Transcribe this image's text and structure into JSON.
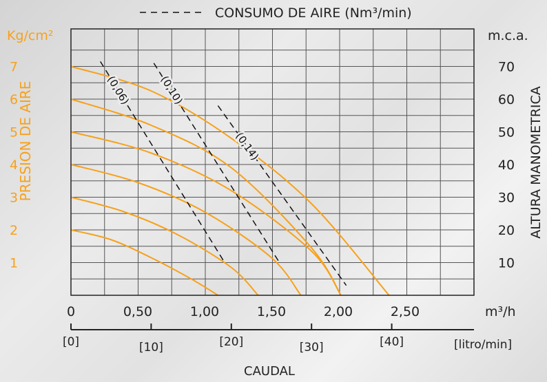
{
  "chart_data": {
    "type": "line",
    "title": "CONSUMO DE AIRE (Nm³/min)",
    "xlabel": "CAUDAL",
    "x_unit": "m³/h",
    "x_ticks": [
      "0",
      "0,50",
      "1,00",
      "1,50",
      "2,00",
      "2,50"
    ],
    "x_range": [
      0,
      3.0
    ],
    "x2_ticks": [
      "[0]",
      "[10]",
      "[20]",
      "[30]",
      "[40]"
    ],
    "x2_unit": "[litro/min]",
    "ylabel_left": "PRESION DE AIRE",
    "y_left_unit": "Kg/cm²",
    "y_left_ticks": [
      "1",
      "2",
      "3",
      "4",
      "5",
      "6",
      "7"
    ],
    "y_left_range": [
      0,
      7.5
    ],
    "ylabel_right": "ALTURA MANOMETRICA",
    "y_right_unit": "m.c.a.",
    "y_right_ticks": [
      "10",
      "20",
      "30",
      "40",
      "50",
      "60",
      "70"
    ],
    "y_right_range": [
      0,
      75
    ],
    "grid": true,
    "series": [
      {
        "name": "2",
        "x": [
          0,
          0.3,
          0.6,
          0.9,
          1.1
        ],
        "y": [
          2.0,
          1.7,
          1.15,
          0.5,
          0
        ]
      },
      {
        "name": "3",
        "x": [
          0,
          0.4,
          0.8,
          1.2,
          1.4
        ],
        "y": [
          3.0,
          2.55,
          1.85,
          0.85,
          0
        ]
      },
      {
        "name": "4",
        "x": [
          0,
          0.5,
          1.0,
          1.5,
          1.72
        ],
        "y": [
          4.0,
          3.45,
          2.55,
          1.15,
          0
        ]
      },
      {
        "name": "5",
        "x": [
          0,
          0.6,
          1.2,
          1.8,
          2.02
        ],
        "y": [
          5.0,
          4.35,
          3.2,
          1.35,
          0
        ]
      },
      {
        "name": "6",
        "x": [
          0,
          0.6,
          1.2,
          1.8,
          2.02
        ],
        "y": [
          6.0,
          5.2,
          3.9,
          1.45,
          0
        ]
      },
      {
        "name": "7",
        "x": [
          0,
          0.6,
          1.2,
          1.8,
          2.38
        ],
        "y": [
          7.0,
          6.25,
          4.8,
          2.8,
          0
        ]
      }
    ],
    "air_consumption": [
      {
        "name": "(0,06)",
        "x": [
          0.22,
          1.15
        ],
        "y": [
          7.15,
          1.0
        ]
      },
      {
        "name": "(0,10)",
        "x": [
          0.62,
          1.56
        ],
        "y": [
          7.1,
          1.0
        ]
      },
      {
        "name": "(0,14)",
        "x": [
          1.1,
          2.06
        ],
        "y": [
          5.8,
          0.3
        ]
      }
    ]
  }
}
